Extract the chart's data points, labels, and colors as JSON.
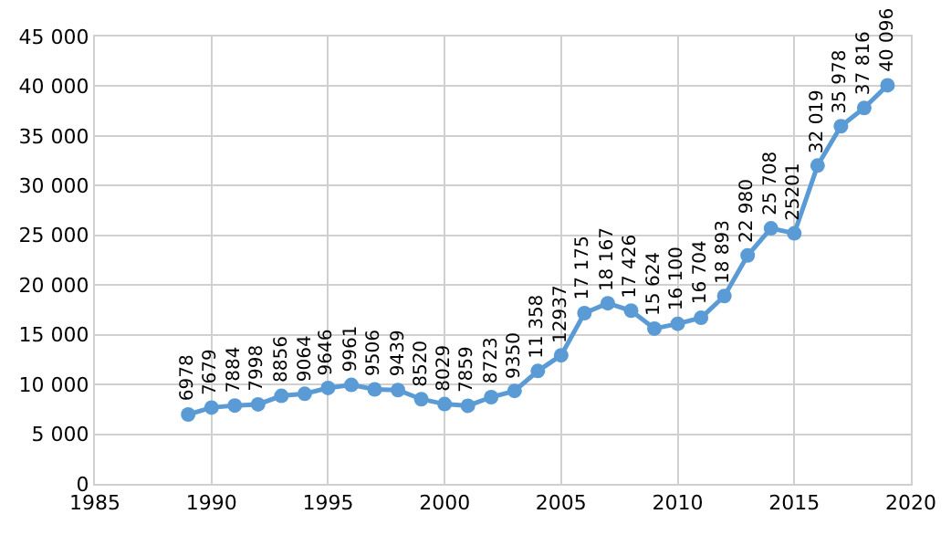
{
  "chart_data": {
    "type": "line",
    "x": [
      1989,
      1990,
      1991,
      1992,
      1993,
      1994,
      1995,
      1996,
      1997,
      1998,
      1999,
      2000,
      2001,
      2002,
      2003,
      2004,
      2005,
      2006,
      2007,
      2008,
      2009,
      2010,
      2011,
      2012,
      2013,
      2014,
      2015,
      2016,
      2017,
      2018,
      2019
    ],
    "series": [
      {
        "color": "#5b9bd5",
        "values": [
          6978,
          7679,
          7884,
          7998,
          8856,
          9064,
          9646,
          9961,
          9506,
          9439,
          8520,
          8029,
          7859,
          8723,
          9350,
          11358,
          12937,
          17175,
          18167,
          17426,
          15624,
          16100,
          16704,
          18893,
          22980,
          25708,
          25201,
          32019,
          35978,
          37816,
          40096
        ],
        "value_labels": [
          "6978",
          "7679",
          "7884",
          "7998",
          "8856",
          "9064",
          "9646",
          "9961",
          "9506",
          "9439",
          "8520",
          "8029",
          "7859",
          "8723",
          "9350",
          "11 358",
          "12937",
          "17 175",
          "18 167",
          "17 426",
          "15 624",
          "16 100",
          "16 704",
          "18 893",
          "22 980",
          "25 708",
          "25201",
          "32 019",
          "35 978",
          "37 816",
          "40 096"
        ]
      }
    ],
    "xlim": [
      1985,
      2020
    ],
    "xticks": [
      1985,
      1990,
      1995,
      2000,
      2005,
      2010,
      2015,
      2020
    ],
    "ylim": [
      0,
      45000
    ],
    "yticks": [
      {
        "value": 0,
        "label": "0"
      },
      {
        "value": 5000,
        "label": "5 000"
      },
      {
        "value": 10000,
        "label": "10 000"
      },
      {
        "value": 15000,
        "label": "15 000"
      },
      {
        "value": 20000,
        "label": "20 000"
      },
      {
        "value": 25000,
        "label": "25 000"
      },
      {
        "value": 30000,
        "label": "30 000"
      },
      {
        "value": 35000,
        "label": "35 000"
      },
      {
        "value": 40000,
        "label": "40 000"
      },
      {
        "value": 45000,
        "label": "45 000"
      }
    ],
    "grid": true,
    "marker": "circle",
    "line_style": "solid",
    "legend": false
  }
}
